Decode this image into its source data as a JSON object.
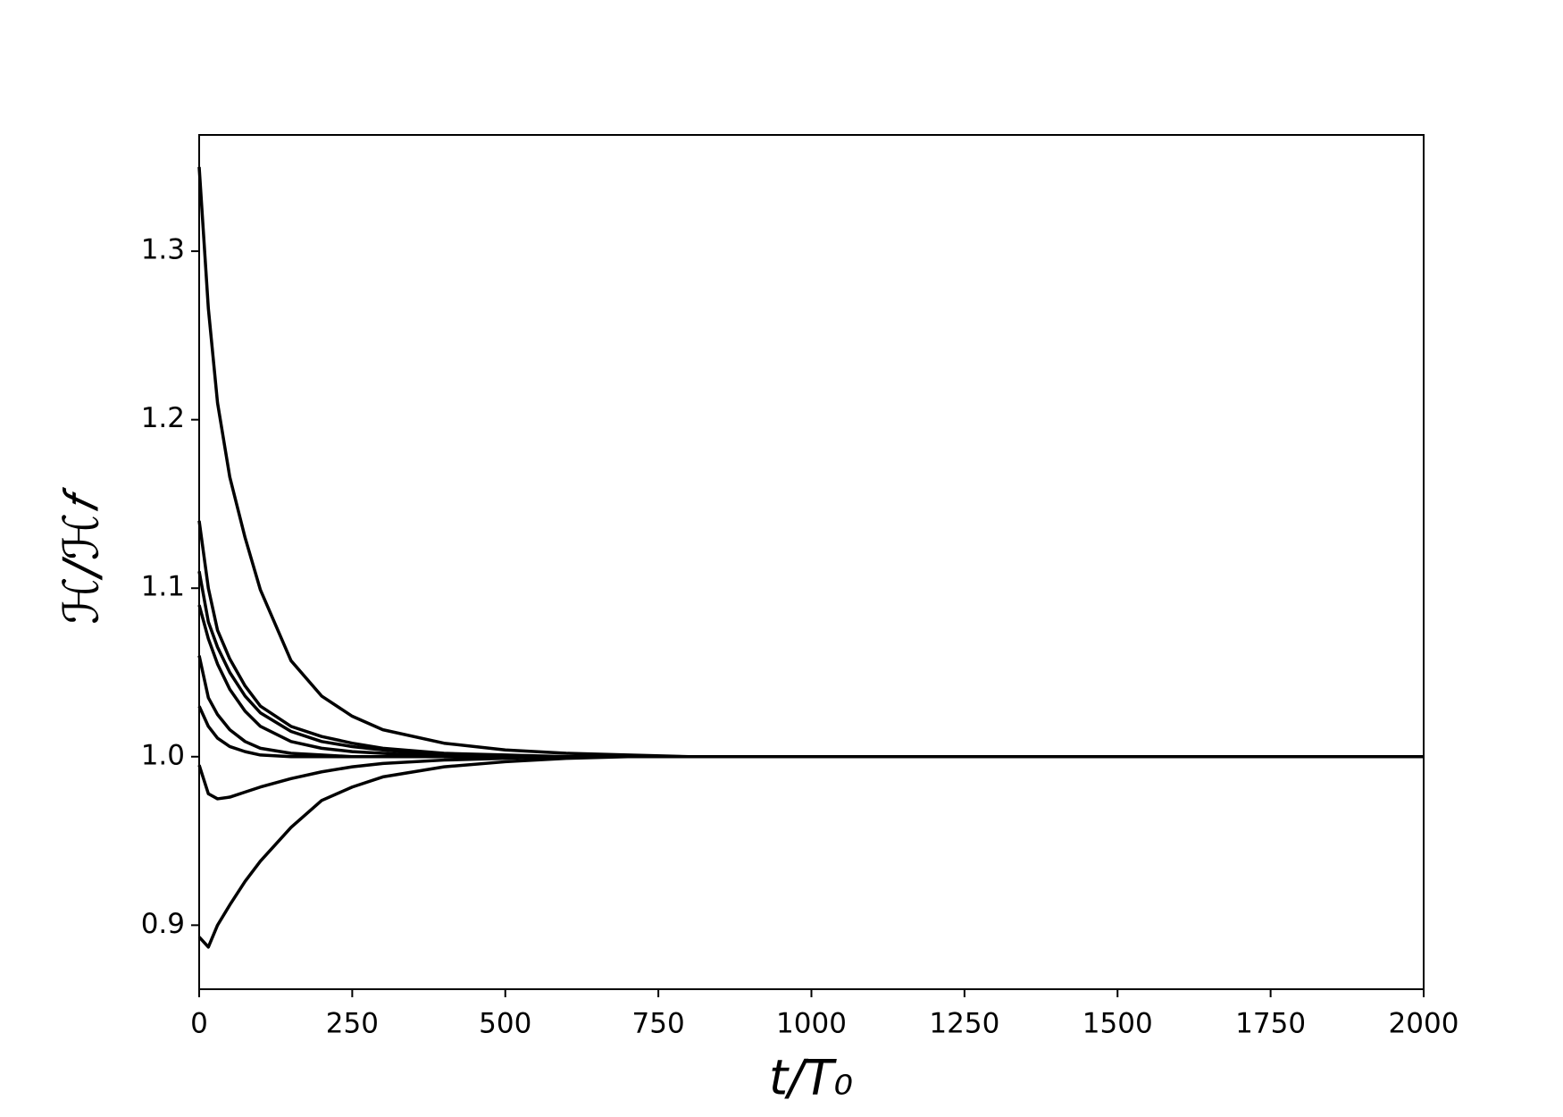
{
  "chart_data": {
    "type": "line",
    "x_label": "t/T₀",
    "y_label": "ℋ/ℋ𝑓",
    "x": [
      0,
      15,
      30,
      50,
      75,
      100,
      150,
      200,
      250,
      300,
      400,
      500,
      600,
      700,
      800,
      1000,
      1500,
      2000
    ],
    "series": [
      {
        "color": "#000000",
        "values": [
          1.35,
          1.266,
          1.21,
          1.166,
          1.13,
          1.099,
          1.057,
          1.036,
          1.024,
          1.016,
          1.008,
          1.004,
          1.002,
          1.001,
          1.0,
          1.0,
          1.0,
          1.0
        ]
      },
      {
        "color": "#000000",
        "values": [
          1.14,
          1.1,
          1.075,
          1.058,
          1.042,
          1.03,
          1.018,
          1.012,
          1.008,
          1.005,
          1.002,
          1.001,
          1.0,
          1.0,
          1.0,
          1.0,
          1.0,
          1.0
        ]
      },
      {
        "color": "#000000",
        "values": [
          1.11,
          1.08,
          1.065,
          1.05,
          1.036,
          1.026,
          1.015,
          1.009,
          1.006,
          1.004,
          1.001,
          1.0,
          1.0,
          1.0,
          1.0,
          1.0,
          1.0,
          1.0
        ]
      },
      {
        "color": "#000000",
        "values": [
          1.09,
          1.07,
          1.055,
          1.04,
          1.027,
          1.018,
          1.009,
          1.005,
          1.003,
          1.002,
          1.0,
          1.0,
          1.0,
          1.0,
          1.0,
          1.0,
          1.0,
          1.0
        ]
      },
      {
        "color": "#000000",
        "values": [
          1.06,
          1.035,
          1.025,
          1.016,
          1.009,
          1.005,
          1.002,
          1.001,
          1.0,
          1.0,
          1.0,
          1.0,
          1.0,
          1.0,
          1.0,
          1.0,
          1.0,
          1.0
        ]
      },
      {
        "color": "#000000",
        "values": [
          1.03,
          1.018,
          1.011,
          1.006,
          1.003,
          1.001,
          1.0,
          1.0,
          1.0,
          1.0,
          1.0,
          1.0,
          1.0,
          1.0,
          1.0,
          1.0,
          1.0,
          1.0
        ]
      },
      {
        "color": "#000000",
        "values": [
          0.995,
          0.978,
          0.975,
          0.976,
          0.979,
          0.982,
          0.987,
          0.991,
          0.994,
          0.996,
          0.998,
          0.999,
          1.0,
          1.0,
          1.0,
          1.0,
          1.0,
          1.0
        ]
      },
      {
        "color": "#000000",
        "values": [
          0.893,
          0.887,
          0.9,
          0.912,
          0.926,
          0.938,
          0.958,
          0.974,
          0.982,
          0.988,
          0.994,
          0.997,
          0.999,
          1.0,
          1.0,
          1.0,
          1.0,
          1.0
        ]
      }
    ],
    "xlim": [
      0,
      2000
    ],
    "xticks": [
      0,
      250,
      500,
      750,
      1000,
      1250,
      1500,
      1750,
      2000
    ],
    "ylim": [
      0.862,
      1.369
    ],
    "yticks": [
      0.9,
      {
        "value": 1,
        "label": "1.0"
      },
      1.1,
      1.2,
      1.3
    ],
    "grid": false
  }
}
